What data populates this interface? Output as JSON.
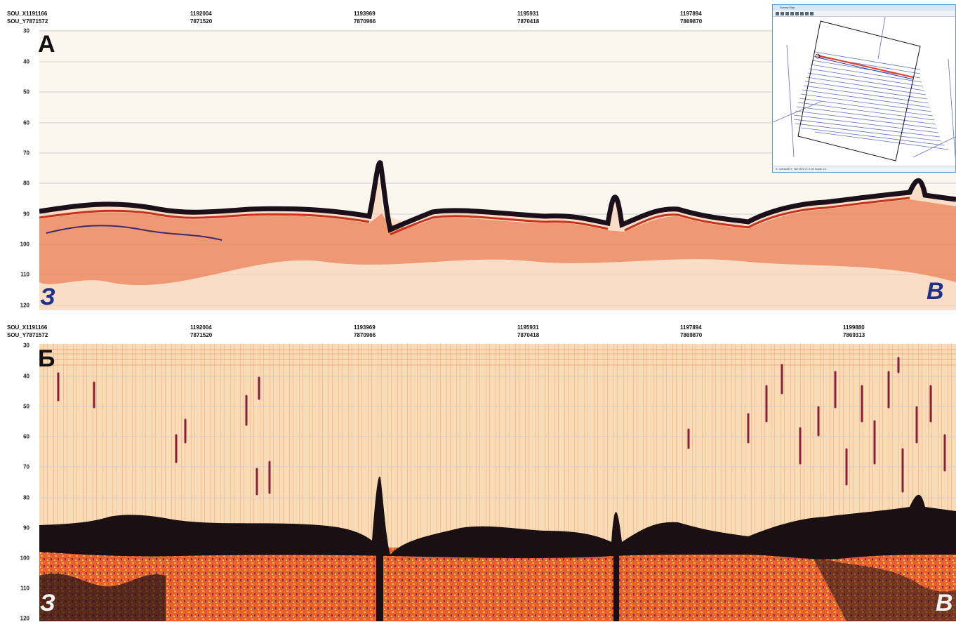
{
  "window_title": "Survey Map",
  "headers": [
    {
      "x_label": "SOU_X1191166",
      "y_label": "SOU_Y7871572",
      "x_coords": [
        "1192004",
        "1193969",
        "1195931",
        "1197894"
      ],
      "y_coords": [
        "7871520",
        "7870966",
        "7870418",
        "7869870"
      ]
    },
    {
      "x_label": "SOU_X1191166",
      "y_label": "SOU_Y7871572",
      "x_coords": [
        "1192004",
        "1193969",
        "1195931",
        "1197894",
        "1199880"
      ],
      "y_coords": [
        "7871520",
        "7870966",
        "7870418",
        "7869870",
        "7869313"
      ]
    }
  ],
  "depth_ticks": [
    "30",
    "40",
    "50",
    "60",
    "70",
    "80",
    "90",
    "100",
    "110",
    "120"
  ],
  "panels": [
    {
      "panel_letter": "А",
      "west_label": "З",
      "east_label": "В"
    },
    {
      "panel_letter": "Б",
      "west_label": "З",
      "east_label": "В"
    }
  ],
  "inset": {
    "status_text": "X: 1191166  Y: 7871572  Z: 0.00  Scale 1:1"
  },
  "colors": {
    "seafloor_dark": "#1a1014",
    "sediment_red": "#c8321a",
    "sediment_orange": "#f08a3a",
    "noise_light": "#f6d3a8",
    "label_navy": "#1f2f8a",
    "track_blue": "#5560b8",
    "track_highlight": "#e23a2a"
  }
}
